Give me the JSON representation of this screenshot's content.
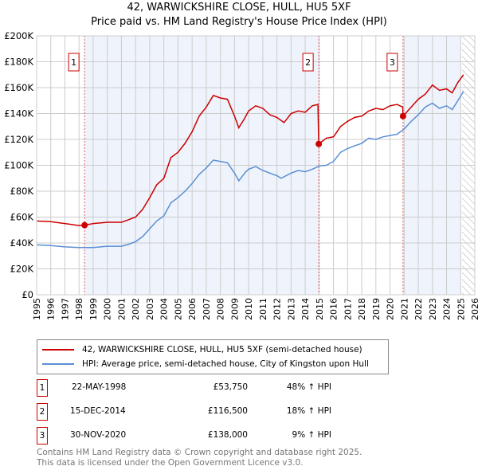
{
  "chart_data": {
    "type": "line",
    "title": "42, WARWICKSHIRE CLOSE, HULL, HU5 5XF",
    "subtitle": "Price paid vs. HM Land Registry's House Price Index (HPI)",
    "xlim": [
      1995,
      2026
    ],
    "ylim": [
      0,
      200000
    ],
    "grid": true,
    "x_ticks": [
      "1995",
      "1996",
      "1997",
      "1998",
      "1999",
      "2000",
      "2001",
      "2002",
      "2003",
      "2004",
      "2005",
      "2006",
      "2007",
      "2008",
      "2009",
      "2010",
      "2011",
      "2012",
      "2013",
      "2014",
      "2015",
      "2016",
      "2017",
      "2018",
      "2019",
      "2020",
      "2021",
      "2022",
      "2023",
      "2024",
      "2025",
      "2026"
    ],
    "y_ticks": [
      {
        "v": 0,
        "label": "£0"
      },
      {
        "v": 20000,
        "label": "£20K"
      },
      {
        "v": 40000,
        "label": "£40K"
      },
      {
        "v": 60000,
        "label": "£60K"
      },
      {
        "v": 80000,
        "label": "£80K"
      },
      {
        "v": 100000,
        "label": "£100K"
      },
      {
        "v": 120000,
        "label": "£120K"
      },
      {
        "v": 140000,
        "label": "£140K"
      },
      {
        "v": 160000,
        "label": "£160K"
      },
      {
        "v": 180000,
        "label": "£180K"
      },
      {
        "v": 200000,
        "label": "£200K"
      }
    ],
    "series": [
      {
        "name": "42, WARWICKSHIRE CLOSE, HULL, HU5 5XF (semi-detached house)",
        "color": "#cc0000",
        "x": [
          1995,
          1996,
          1997,
          1998,
          1998.39,
          1999,
          2000,
          2001,
          2001.5,
          2002,
          2002.5,
          2003,
          2003.5,
          2004,
          2004.5,
          2005,
          2005.5,
          2006,
          2006.5,
          2007,
          2007.5,
          2008,
          2008.5,
          2009,
          2009.3,
          2009.7,
          2010,
          2010.5,
          2011,
          2011.5,
          2012,
          2012.5,
          2013,
          2013.5,
          2014,
          2014.5,
          2014.9,
          2014.96,
          2015.5,
          2016,
          2016.5,
          2017,
          2017.5,
          2018,
          2018.5,
          2019,
          2019.5,
          2020,
          2020.5,
          2020.9,
          2020.92,
          2021.5,
          2022,
          2022.5,
          2023,
          2023.5,
          2024,
          2024.4,
          2024.8,
          2025.2
        ],
        "y": [
          57000,
          56500,
          55000,
          53500,
          53750,
          55000,
          56000,
          56000,
          58000,
          60000,
          66000,
          75000,
          85000,
          90000,
          106000,
          110000,
          117000,
          126000,
          138000,
          145000,
          154000,
          152000,
          151000,
          138000,
          129000,
          136000,
          142000,
          146000,
          144000,
          139000,
          137000,
          133000,
          140000,
          142000,
          141000,
          146000,
          147000,
          116500,
          121000,
          122000,
          130000,
          134000,
          137000,
          138000,
          142000,
          144000,
          143000,
          146000,
          147000,
          145000,
          138000,
          145000,
          151000,
          155000,
          162000,
          158000,
          159000,
          156000,
          164000,
          170000
        ]
      },
      {
        "name": "HPI: Average price, semi-detached house, City of Kingston upon Hull",
        "color": "#5b8fd4",
        "x": [
          1995,
          1996,
          1997,
          1998,
          1999,
          2000,
          2001,
          2001.5,
          2002,
          2002.5,
          2003,
          2003.5,
          2004,
          2004.5,
          2005,
          2005.5,
          2006,
          2006.5,
          2007,
          2007.5,
          2008,
          2008.5,
          2009,
          2009.3,
          2009.8,
          2010,
          2010.5,
          2011,
          2011.5,
          2012,
          2012.3,
          2013,
          2013.5,
          2014,
          2014.5,
          2015,
          2015.5,
          2016,
          2016.5,
          2017,
          2017.5,
          2018,
          2018.5,
          2019,
          2019.5,
          2020,
          2020.5,
          2021,
          2021.5,
          2022,
          2022.5,
          2023,
          2023.5,
          2024,
          2024.4,
          2024.8,
          2025.2
        ],
        "y": [
          38500,
          38000,
          37000,
          36500,
          36500,
          37500,
          37500,
          39000,
          41000,
          45000,
          51000,
          57000,
          61000,
          71000,
          75000,
          80000,
          86000,
          93000,
          98000,
          104000,
          103000,
          102000,
          94000,
          88000,
          95000,
          97000,
          99000,
          96000,
          94000,
          92000,
          90000,
          94000,
          96000,
          95000,
          97000,
          99500,
          100000,
          103000,
          110000,
          113000,
          115000,
          117000,
          121000,
          120000,
          122000,
          123000,
          124000,
          128000,
          134000,
          139000,
          145000,
          148000,
          144000,
          146000,
          143000,
          150000,
          157000
        ]
      }
    ],
    "sales": [
      {
        "num": "1",
        "x": 1998.39,
        "y": 53750,
        "date": "22-MAY-1998",
        "price": "£53,750",
        "delta": "48% ↑ HPI"
      },
      {
        "num": "2",
        "x": 2014.96,
        "y": 116500,
        "date": "15-DEC-2014",
        "price": "£116,500",
        "delta": "18% ↑ HPI"
      },
      {
        "num": "3",
        "x": 2020.92,
        "y": 138000,
        "date": "30-NOV-2020",
        "price": "£138,000",
        "delta": "9% ↑ HPI"
      }
    ],
    "shaded_ranges": [
      [
        1998.39,
        2014.96
      ],
      [
        2020.92,
        2025.0
      ]
    ],
    "hatched_range": [
      2025.1,
      2026
    ],
    "legend_position": "below"
  },
  "footer": {
    "line1": "Contains HM Land Registry data © Crown copyright and database right 2025.",
    "line2": "This data is licensed under the Open Government Licence v3.0."
  }
}
